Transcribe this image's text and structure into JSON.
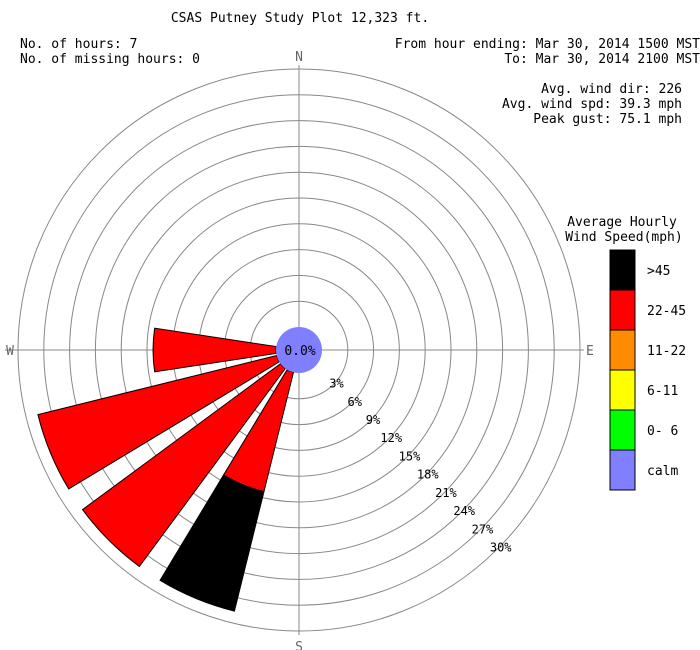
{
  "header": {
    "title": "CSAS Putney Study Plot 12,323 ft.",
    "hours_line": "No. of hours: 7",
    "missing_line": "No. of missing hours: 0",
    "from_line": "From hour ending: Mar 30, 2014 1500 MST",
    "to_line": "To: Mar 30, 2014 2100 MST",
    "avg_dir_line": "Avg. wind dir: 226",
    "avg_spd_line": "Avg. wind spd: 39.3 mph",
    "peak_line": "Peak gust: 75.1 mph"
  },
  "chart_data": {
    "type": "windrose",
    "compass": {
      "N": "N",
      "E": "E",
      "S": "S",
      "W": "W"
    },
    "ring_labels": [
      "3%",
      "6%",
      "9%",
      "12%",
      "15%",
      "18%",
      "21%",
      "24%",
      "27%",
      "30%"
    ],
    "rmax_percent": 30,
    "calm_percent": 0.0,
    "calm_label": "0.0%",
    "sectors": [
      {
        "direction_deg": 202.5,
        "segments": [
          {
            "class": "22-45",
            "percent": 14.3
          },
          {
            "class": ">45",
            "percent": 14.3
          }
        ]
      },
      {
        "direction_deg": 225,
        "segments": [
          {
            "class": "22-45",
            "percent": 28.6
          }
        ]
      },
      {
        "direction_deg": 247.5,
        "segments": [
          {
            "class": "22-45",
            "percent": 28.6
          }
        ]
      },
      {
        "direction_deg": 270,
        "segments": [
          {
            "class": "22-45",
            "percent": 14.3
          }
        ]
      }
    ],
    "legend": {
      "title_line1": "Average Hourly",
      "title_line2": "Wind Speed(mph)",
      "items": [
        {
          "label": ">45",
          "color": "#000000"
        },
        {
          "label": "22-45",
          "color": "#ff0000"
        },
        {
          "label": "11-22",
          "color": "#ff8c00"
        },
        {
          "label": "6-11",
          "color": "#ffff00"
        },
        {
          "label": "0- 6",
          "color": "#00ff00"
        },
        {
          "label": "calm",
          "color": "#7f7fff"
        }
      ]
    },
    "colors": {
      "calm": "#7f7fff",
      "grid": "#888888"
    }
  }
}
